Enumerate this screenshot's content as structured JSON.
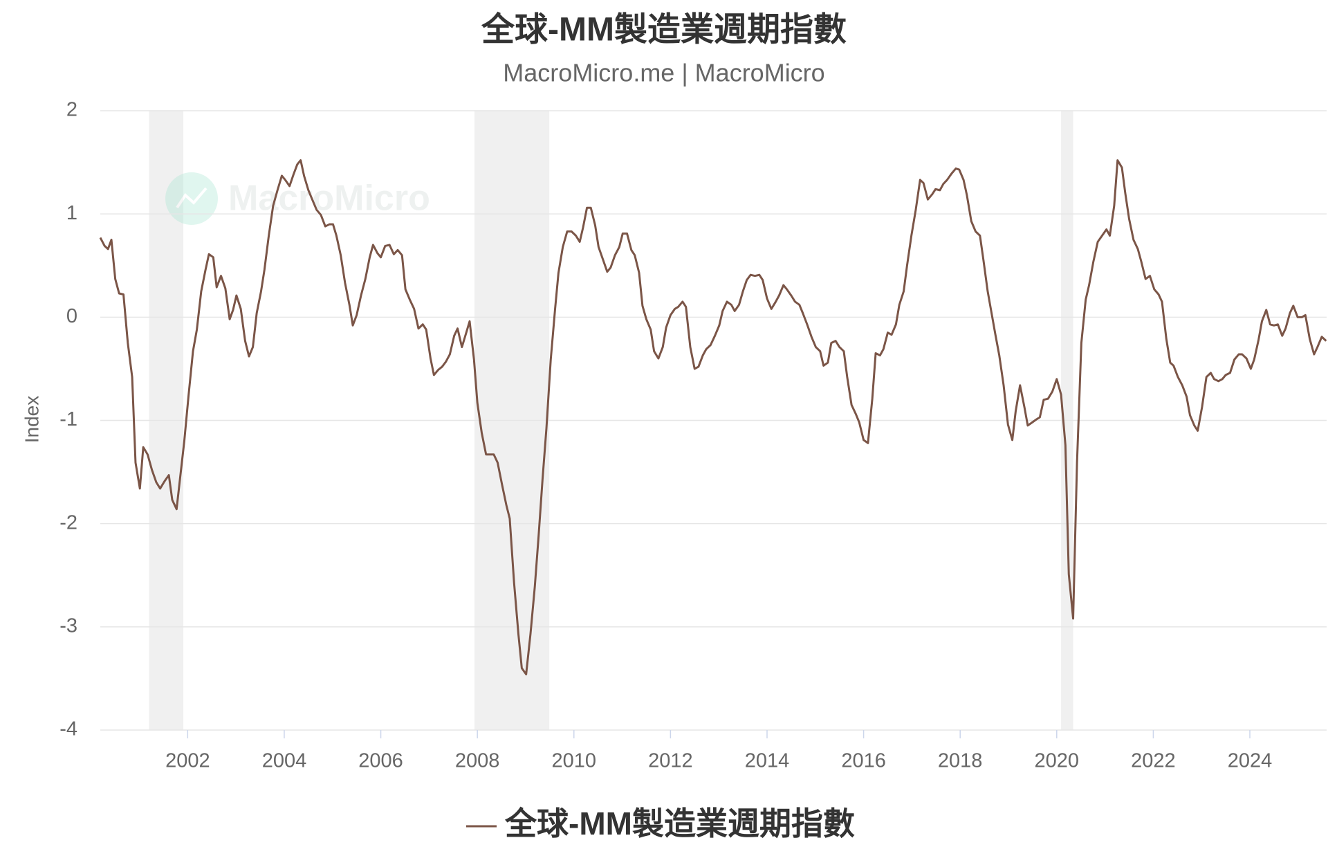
{
  "chart_data": {
    "type": "line",
    "title": "全球-MM製造業週期指數",
    "subtitle": "MacroMicro.me | MacroMicro",
    "watermark": "MacroMicro",
    "y_label": "Index",
    "xlim": [
      2000.19,
      2025.59
    ],
    "xticks": [
      2002,
      2004,
      2006,
      2008,
      2010,
      2012,
      2014,
      2016,
      2018,
      2020,
      2022,
      2024
    ],
    "ylim": [
      -4,
      2
    ],
    "yticks": [
      -4,
      -3,
      -2,
      -1,
      0,
      1,
      2
    ],
    "grid": true,
    "shaded_color": "#f0f0f0",
    "shaded_periods": [
      [
        2001.2,
        2001.91
      ],
      [
        2007.94,
        2009.49
      ],
      [
        2020.09,
        2020.34
      ]
    ],
    "x": [
      2000.19,
      2000.28,
      2000.35,
      2000.42,
      2000.5,
      2000.58,
      2000.67,
      2000.76,
      2000.85,
      2000.92,
      2001.01,
      2001.08,
      2001.17,
      2001.26,
      2001.35,
      2001.43,
      2001.52,
      2001.61,
      2001.68,
      2001.77,
      2001.84,
      2001.93,
      2002.02,
      2002.11,
      2002.19,
      2002.28,
      2002.37,
      2002.44,
      2002.53,
      2002.6,
      2002.69,
      2002.78,
      2002.87,
      2002.94,
      2003.01,
      2003.1,
      2003.19,
      2003.27,
      2003.35,
      2003.43,
      2003.52,
      2003.59,
      2003.68,
      2003.77,
      2003.86,
      2003.95,
      2004.02,
      2004.11,
      2004.19,
      2004.27,
      2004.34,
      2004.41,
      2004.5,
      2004.58,
      2004.67,
      2004.76,
      2004.85,
      2004.94,
      2005.01,
      2005.08,
      2005.17,
      2005.26,
      2005.35,
      2005.42,
      2005.5,
      2005.59,
      2005.68,
      2005.77,
      2005.84,
      2005.93,
      2006.0,
      2006.09,
      2006.18,
      2006.27,
      2006.35,
      2006.44,
      2006.51,
      2006.6,
      2006.69,
      2006.78,
      2006.87,
      2006.94,
      2007.03,
      2007.1,
      2007.19,
      2007.27,
      2007.35,
      2007.43,
      2007.52,
      2007.59,
      2007.68,
      2007.77,
      2007.84,
      2007.93,
      2008.0,
      2008.09,
      2008.18,
      2008.25,
      2008.34,
      2008.42,
      2008.51,
      2008.6,
      2008.67,
      2008.76,
      2008.85,
      2008.92,
      2009.01,
      2009.1,
      2009.19,
      2009.27,
      2009.35,
      2009.43,
      2009.52,
      2009.61,
      2009.68,
      2009.77,
      2009.86,
      2009.95,
      2010.04,
      2010.12,
      2010.19,
      2010.27,
      2010.35,
      2010.44,
      2010.51,
      2010.6,
      2010.69,
      2010.76,
      2010.85,
      2010.94,
      2011.01,
      2011.1,
      2011.19,
      2011.26,
      2011.35,
      2011.42,
      2011.5,
      2011.59,
      2011.66,
      2011.75,
      2011.84,
      2011.91,
      2012.0,
      2012.09,
      2012.16,
      2012.25,
      2012.32,
      2012.41,
      2012.5,
      2012.58,
      2012.67,
      2012.74,
      2012.83,
      2012.92,
      2013.01,
      2013.08,
      2013.17,
      2013.26,
      2013.33,
      2013.42,
      2013.5,
      2013.58,
      2013.66,
      2013.75,
      2013.84,
      2013.91,
      2014.0,
      2014.09,
      2014.18,
      2014.25,
      2014.34,
      2014.41,
      2014.5,
      2014.58,
      2014.67,
      2014.74,
      2014.83,
      2014.92,
      2015.01,
      2015.1,
      2015.17,
      2015.26,
      2015.33,
      2015.42,
      2015.5,
      2015.59,
      2015.66,
      2015.75,
      2015.84,
      2015.91,
      2016.0,
      2016.09,
      2016.18,
      2016.25,
      2016.34,
      2016.41,
      2016.5,
      2016.58,
      2016.67,
      2016.74,
      2016.83,
      2016.9,
      2016.99,
      2017.08,
      2017.17,
      2017.24,
      2017.33,
      2017.42,
      2017.49,
      2017.58,
      2017.65,
      2017.73,
      2017.82,
      2017.91,
      2017.98,
      2018.07,
      2018.14,
      2018.23,
      2018.32,
      2018.41,
      2018.48,
      2018.57,
      2018.65,
      2018.73,
      2018.81,
      2018.9,
      2018.99,
      2019.08,
      2019.15,
      2019.24,
      2019.33,
      2019.4,
      2019.49,
      2019.58,
      2019.65,
      2019.73,
      2019.82,
      2019.91,
      2020.0,
      2020.09,
      2020.18,
      2020.25,
      2020.34,
      2020.42,
      2020.51,
      2020.6,
      2020.67,
      2020.76,
      2020.85,
      2020.94,
      2021.03,
      2021.1,
      2021.19,
      2021.26,
      2021.35,
      2021.42,
      2021.5,
      2021.59,
      2021.68,
      2021.75,
      2021.84,
      2021.93,
      2022.02,
      2022.11,
      2022.18,
      2022.27,
      2022.35,
      2022.42,
      2022.51,
      2022.6,
      2022.69,
      2022.76,
      2022.85,
      2022.92,
      2023.01,
      2023.1,
      2023.19,
      2023.26,
      2023.35,
      2023.43,
      2023.5,
      2023.59,
      2023.68,
      2023.77,
      2023.84,
      2023.93,
      2024.02,
      2024.09,
      2024.18,
      2024.25,
      2024.34,
      2024.42,
      2024.5,
      2024.58,
      2024.67,
      2024.74,
      2024.83,
      2024.9,
      2024.99,
      2025.08,
      2025.15,
      2025.24,
      2025.33,
      2025.4,
      2025.49,
      2025.58
    ],
    "series": [
      {
        "name": "全球-MM製造業週期指數",
        "color": "#7b5547",
        "values": [
          0.77,
          0.69,
          0.66,
          0.75,
          0.37,
          0.23,
          0.22,
          -0.25,
          -0.58,
          -1.41,
          -1.66,
          -1.26,
          -1.33,
          -1.48,
          -1.6,
          -1.66,
          -1.59,
          -1.53,
          -1.77,
          -1.86,
          -1.57,
          -1.2,
          -0.75,
          -0.33,
          -0.12,
          0.25,
          0.46,
          0.61,
          0.58,
          0.29,
          0.4,
          0.28,
          -0.02,
          0.07,
          0.21,
          0.08,
          -0.23,
          -0.38,
          -0.29,
          0.04,
          0.25,
          0.46,
          0.79,
          1.08,
          1.23,
          1.37,
          1.33,
          1.27,
          1.38,
          1.48,
          1.52,
          1.37,
          1.23,
          1.14,
          1.04,
          0.99,
          0.88,
          0.9,
          0.9,
          0.79,
          0.6,
          0.33,
          0.12,
          -0.08,
          0.02,
          0.21,
          0.37,
          0.58,
          0.7,
          0.62,
          0.58,
          0.69,
          0.7,
          0.61,
          0.65,
          0.6,
          0.27,
          0.17,
          0.08,
          -0.11,
          -0.07,
          -0.12,
          -0.4,
          -0.56,
          -0.51,
          -0.48,
          -0.43,
          -0.36,
          -0.18,
          -0.11,
          -0.29,
          -0.15,
          -0.04,
          -0.41,
          -0.83,
          -1.12,
          -1.33,
          -1.33,
          -1.33,
          -1.41,
          -1.62,
          -1.82,
          -1.95,
          -2.57,
          -3.07,
          -3.4,
          -3.46,
          -3.07,
          -2.61,
          -2.11,
          -1.57,
          -1.08,
          -0.41,
          0.08,
          0.43,
          0.68,
          0.83,
          0.83,
          0.79,
          0.73,
          0.87,
          1.06,
          1.06,
          0.89,
          0.68,
          0.56,
          0.44,
          0.48,
          0.6,
          0.68,
          0.81,
          0.81,
          0.65,
          0.6,
          0.43,
          0.11,
          -0.02,
          -0.12,
          -0.33,
          -0.4,
          -0.29,
          -0.1,
          0.02,
          0.08,
          0.1,
          0.15,
          0.1,
          -0.29,
          -0.5,
          -0.48,
          -0.37,
          -0.31,
          -0.27,
          -0.18,
          -0.08,
          0.06,
          0.15,
          0.12,
          0.06,
          0.12,
          0.25,
          0.36,
          0.41,
          0.4,
          0.41,
          0.36,
          0.18,
          0.08,
          0.15,
          0.21,
          0.31,
          0.27,
          0.21,
          0.15,
          0.12,
          0.04,
          -0.07,
          -0.19,
          -0.29,
          -0.33,
          -0.47,
          -0.44,
          -0.25,
          -0.23,
          -0.29,
          -0.33,
          -0.58,
          -0.85,
          -0.94,
          -1.02,
          -1.19,
          -1.22,
          -0.79,
          -0.35,
          -0.37,
          -0.31,
          -0.15,
          -0.17,
          -0.07,
          0.12,
          0.25,
          0.5,
          0.79,
          1.04,
          1.33,
          1.3,
          1.14,
          1.19,
          1.24,
          1.23,
          1.29,
          1.33,
          1.39,
          1.44,
          1.43,
          1.33,
          1.18,
          0.93,
          0.83,
          0.79,
          0.56,
          0.25,
          0.04,
          -0.17,
          -0.37,
          -0.66,
          -1.04,
          -1.19,
          -0.91,
          -0.66,
          -0.87,
          -1.05,
          -1.02,
          -0.99,
          -0.97,
          -0.8,
          -0.79,
          -0.72,
          -0.6,
          -0.75,
          -1.24,
          -2.49,
          -2.92,
          -1.41,
          -0.25,
          0.17,
          0.31,
          0.54,
          0.73,
          0.79,
          0.85,
          0.79,
          1.08,
          1.52,
          1.45,
          1.2,
          0.95,
          0.75,
          0.66,
          0.54,
          0.37,
          0.4,
          0.27,
          0.22,
          0.15,
          -0.21,
          -0.44,
          -0.47,
          -0.58,
          -0.66,
          -0.77,
          -0.95,
          -1.05,
          -1.1,
          -0.87,
          -0.58,
          -0.54,
          -0.6,
          -0.62,
          -0.6,
          -0.56,
          -0.54,
          -0.41,
          -0.36,
          -0.36,
          -0.4,
          -0.5,
          -0.41,
          -0.22,
          -0.04,
          0.07,
          -0.07,
          -0.08,
          -0.07,
          -0.18,
          -0.11,
          0.04,
          0.11,
          0.0,
          0.0,
          0.02,
          -0.21,
          -0.36,
          -0.29,
          -0.19,
          -0.23
        ]
      }
    ]
  }
}
